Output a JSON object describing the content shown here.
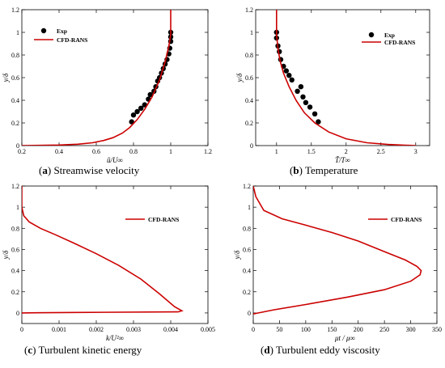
{
  "chart_data": [
    {
      "type": "line",
      "caption_letter": "a",
      "caption_text": "Streamwise velocity",
      "xlabel": "ũ/U∞",
      "ylabel": "y/δ",
      "xlim": [
        0.2,
        1.2
      ],
      "ylim": [
        0,
        1.2
      ],
      "xticks": [
        "0.2",
        "0.4",
        "0.6",
        "0.8",
        "1",
        "1.2"
      ],
      "yticks": [
        "0",
        "0.2",
        "0.4",
        "0.6",
        "0.8",
        "1",
        "1.2"
      ],
      "legend": {
        "position": "top-left",
        "entries": [
          "Exp",
          "CFD-RANS"
        ]
      },
      "series": [
        {
          "name": "Exp",
          "style": "markers",
          "color": "#000000",
          "x": [
            0.79,
            0.8,
            0.82,
            0.84,
            0.86,
            0.88,
            0.89,
            0.91,
            0.92,
            0.93,
            0.94,
            0.95,
            0.96,
            0.97,
            0.98,
            0.99,
            0.995,
            1.0,
            1.0,
            1.0
          ],
          "y": [
            0.21,
            0.27,
            0.3,
            0.33,
            0.36,
            0.41,
            0.45,
            0.48,
            0.52,
            0.57,
            0.6,
            0.64,
            0.68,
            0.72,
            0.76,
            0.81,
            0.86,
            0.92,
            0.96,
            1.0
          ]
        },
        {
          "name": "CFD-RANS",
          "style": "line",
          "color": "#cc0000",
          "x": [
            0.2,
            0.4,
            0.5,
            0.58,
            0.64,
            0.69,
            0.74,
            0.78,
            0.82,
            0.86,
            0.9,
            0.94,
            0.97,
            0.99,
            1.0,
            1.0
          ],
          "y": [
            0.0,
            0.005,
            0.012,
            0.025,
            0.045,
            0.07,
            0.11,
            0.16,
            0.23,
            0.32,
            0.43,
            0.58,
            0.74,
            0.88,
            0.98,
            1.2
          ]
        }
      ]
    },
    {
      "type": "line",
      "caption_letter": "b",
      "caption_text": "Temperature",
      "xlabel": "T̃/T∞",
      "ylabel": "y/δ",
      "xlim": [
        0.7,
        3.2
      ],
      "ylim": [
        0,
        1.2
      ],
      "xticks": [
        "1",
        "1.5",
        "2",
        "2.5",
        "3"
      ],
      "xtick_values": [
        1,
        1.5,
        2,
        2.5,
        3
      ],
      "yticks": [
        "0",
        "0.2",
        "0.4",
        "0.6",
        "0.8",
        "1",
        "1.2"
      ],
      "legend": {
        "position": "top-right",
        "entries": [
          "Exp",
          "CFD-RANS"
        ]
      },
      "series": [
        {
          "name": "Exp",
          "style": "markers",
          "color": "#000000",
          "x": [
            1.0,
            1.0,
            1.02,
            1.04,
            1.06,
            1.1,
            1.14,
            1.18,
            1.22,
            1.3,
            1.35,
            1.38,
            1.42,
            1.48,
            1.55,
            1.6
          ],
          "y": [
            1.0,
            0.95,
            0.88,
            0.83,
            0.76,
            0.7,
            0.66,
            0.62,
            0.58,
            0.48,
            0.52,
            0.43,
            0.38,
            0.34,
            0.28,
            0.21
          ]
        },
        {
          "name": "CFD-RANS",
          "style": "line",
          "color": "#cc0000",
          "x": [
            1.0,
            1.0,
            1.02,
            1.05,
            1.1,
            1.18,
            1.28,
            1.4,
            1.55,
            1.75,
            2.0,
            2.3,
            2.6,
            2.85,
            3.0
          ],
          "y": [
            1.2,
            0.98,
            0.86,
            0.75,
            0.64,
            0.52,
            0.4,
            0.29,
            0.2,
            0.12,
            0.06,
            0.025,
            0.01,
            0.003,
            0.0
          ]
        }
      ]
    },
    {
      "type": "line",
      "caption_letter": "c",
      "caption_text": "Turbulent kinetic energy",
      "xlabel": "k/U²∞",
      "ylabel": "y/δ",
      "xlim": [
        0,
        0.005
      ],
      "ylim": [
        -0.1,
        1.2
      ],
      "xticks": [
        "0",
        "0.001",
        "0.002",
        "0.003",
        "0.004",
        "0.005"
      ],
      "xtick_values": [
        0,
        0.001,
        0.002,
        0.003,
        0.004,
        0.005
      ],
      "yticks": [
        "0",
        "0.2",
        "0.4",
        "0.6",
        "0.8",
        "1",
        "1.2"
      ],
      "legend": {
        "position": "center-right",
        "entries": [
          "CFD-RANS"
        ]
      },
      "series": [
        {
          "name": "CFD-RANS",
          "style": "line",
          "color": "#cc0000",
          "x": [
            0.0,
            0.0,
            5e-05,
            0.0002,
            0.0005,
            0.0009,
            0.0014,
            0.002,
            0.0026,
            0.0032,
            0.0037,
            0.0041,
            0.0043,
            0.0042,
            0.0015,
            0.0004,
            0.0
          ],
          "y": [
            1.2,
            1.0,
            0.92,
            0.86,
            0.8,
            0.74,
            0.66,
            0.56,
            0.45,
            0.32,
            0.18,
            0.06,
            0.02,
            0.01,
            0.005,
            0.002,
            0.0
          ]
        }
      ]
    },
    {
      "type": "line",
      "caption_letter": "d",
      "caption_text": "Turbulent eddy viscosity",
      "xlabel": "μt / μ∞",
      "ylabel": "y/δ",
      "xlim": [
        0,
        350
      ],
      "ylim": [
        -0.1,
        1.2
      ],
      "xticks": [
        "0",
        "50",
        "100",
        "150",
        "200",
        "250",
        "300",
        "350"
      ],
      "xtick_values": [
        0,
        50,
        100,
        150,
        200,
        250,
        300,
        350
      ],
      "yticks": [
        "0",
        "0.2",
        "0.4",
        "0.6",
        "0.8",
        "1",
        "1.2"
      ],
      "legend": {
        "position": "top-right",
        "entries": [
          "CFD-RANS"
        ]
      },
      "series": [
        {
          "name": "CFD-RANS",
          "style": "line",
          "color": "#cc0000",
          "x": [
            0,
            5,
            20,
            55,
            100,
            150,
            200,
            250,
            290,
            312,
            320,
            318,
            300,
            250,
            180,
            100,
            40,
            10,
            0
          ],
          "y": [
            1.2,
            1.1,
            0.97,
            0.89,
            0.83,
            0.76,
            0.68,
            0.58,
            0.5,
            0.44,
            0.4,
            0.36,
            0.3,
            0.22,
            0.15,
            0.08,
            0.03,
            0.0,
            -0.01
          ]
        }
      ]
    }
  ]
}
